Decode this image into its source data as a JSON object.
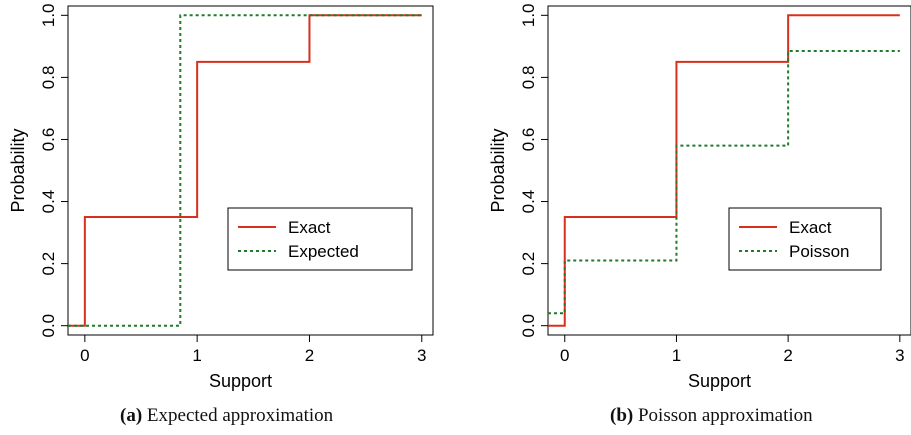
{
  "chart_data": [
    {
      "type": "line",
      "step": true,
      "xlabel": "Support",
      "ylabel": "Probability",
      "xlim": [
        -0.15,
        3.1
      ],
      "ylim": [
        -0.03,
        1.03
      ],
      "x_ticks": [
        "0",
        "1",
        "2",
        "3"
      ],
      "y_ticks": [
        "0.0",
        "0.2",
        "0.4",
        "0.6",
        "0.8",
        "1.0"
      ],
      "legend_position": "bottom-right",
      "series": [
        {
          "name": "Exact",
          "color": "#d8301f",
          "style": "solid",
          "points": [
            [
              -0.15,
              0
            ],
            [
              0,
              0.35
            ],
            [
              1,
              0.85
            ],
            [
              2,
              1.0
            ],
            [
              3,
              1.0
            ]
          ]
        },
        {
          "name": "Expected",
          "color": "#1f7a2a",
          "style": "dotted",
          "points": [
            [
              -0.15,
              0
            ],
            [
              0.85,
              1.0
            ],
            [
              3,
              1.0
            ]
          ]
        }
      ],
      "caption_label": "(a)",
      "caption_text": "Expected approximation"
    },
    {
      "type": "line",
      "step": true,
      "xlabel": "Support",
      "ylabel": "Probability",
      "xlim": [
        -0.15,
        3.1
      ],
      "ylim": [
        -0.03,
        1.03
      ],
      "x_ticks": [
        "0",
        "1",
        "2",
        "3"
      ],
      "y_ticks": [
        "0.0",
        "0.2",
        "0.4",
        "0.6",
        "0.8",
        "1.0"
      ],
      "legend_position": "bottom-right",
      "series": [
        {
          "name": "Exact",
          "color": "#d8301f",
          "style": "solid",
          "points": [
            [
              -0.15,
              0
            ],
            [
              0,
              0.35
            ],
            [
              1,
              0.85
            ],
            [
              2,
              1.0
            ],
            [
              3,
              1.0
            ]
          ]
        },
        {
          "name": "Poisson",
          "color": "#1f7a2a",
          "style": "dotted",
          "points": [
            [
              -0.15,
              0.04
            ],
            [
              0,
              0.21
            ],
            [
              1,
              0.58
            ],
            [
              2,
              0.885
            ],
            [
              3,
              0.885
            ]
          ]
        }
      ],
      "caption_label": "(b)",
      "caption_text": "Poisson approximation"
    }
  ]
}
